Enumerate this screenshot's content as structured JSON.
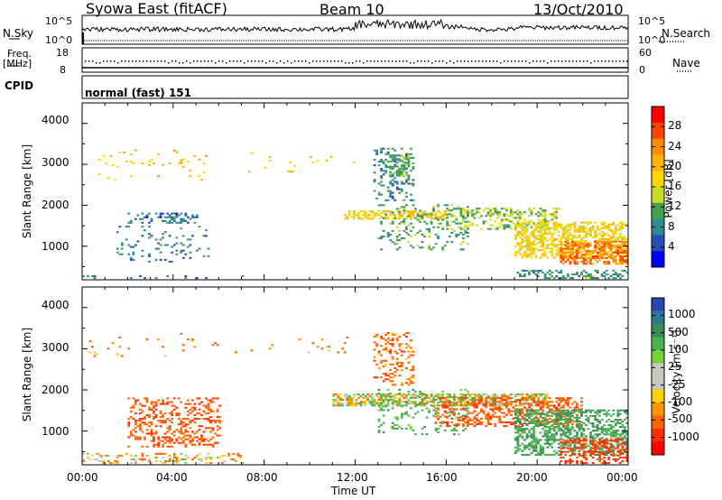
{
  "header": {
    "station": "Syowa East (fitACF)",
    "beam": "Beam 10",
    "date": "13/Oct/2010"
  },
  "top_panels": {
    "nsky_label": "N.Sky",
    "nsearch_label": "N.Search",
    "nsky_ticks": [
      "10^5",
      "10^0"
    ],
    "nsearch_ticks": [
      "10^5",
      "10^0"
    ],
    "freq_label": "Freq.",
    "freq_unit": "[MHz]",
    "freq_ticks": [
      "18",
      "8"
    ],
    "nave_label": "Nave",
    "nave_ticks": [
      "60",
      "0"
    ],
    "cpid_label": "CPID",
    "cpid_text": "normal (fast) 151"
  },
  "panels": {
    "ylabel": "Slant Range [km]",
    "yticks": [
      "4000",
      "3000",
      "2000",
      "1000"
    ],
    "xlabel": "Time UT",
    "xticks": [
      "00:00",
      "04:00",
      "08:00",
      "12:00",
      "16:00",
      "20:00",
      "00:00"
    ]
  },
  "power_colorbar": {
    "label": "Power [dB]",
    "ticks": [
      "28",
      "24",
      "20",
      "16",
      "12",
      "8",
      "4"
    ],
    "colors": [
      "#ff0000",
      "#ff4400",
      "#ff8c00",
      "#ffb300",
      "#ffd700",
      "#c8dc28",
      "#46a050",
      "#2d8c8c",
      "#2850b4",
      "#0000ff"
    ]
  },
  "velocity_colorbar": {
    "label": "Velocity [m s⁻¹]",
    "ticks": [
      "1000",
      "500",
      "100",
      "25",
      "-25",
      "-100",
      "-500",
      "-1000"
    ],
    "colors": [
      "#2845b4",
      "#2d7896",
      "#3c8c5a",
      "#4bb450",
      "#78d23c",
      "#c8c8c0",
      "#c8c8c0",
      "#ffd200",
      "#ff9600",
      "#ff6400",
      "#ff3000",
      "#ff0000"
    ]
  },
  "chart_data": [
    {
      "type": "heatmap",
      "title": "Power",
      "xlabel": "Time UT",
      "ylabel": "Slant Range [km]",
      "xlim": [
        0,
        24
      ],
      "ylim": [
        180,
        4500
      ],
      "colorbar": "Power [dB]",
      "clim": [
        0,
        30
      ],
      "regions": [
        {
          "t": [
            0,
            0.6
          ],
          "r": [
            200,
            250
          ],
          "v": 6,
          "d": 0.5
        },
        {
          "t": [
            0.5,
            7.0
          ],
          "r": [
            200,
            280
          ],
          "v": 6,
          "d": 0.1
        },
        {
          "t": [
            0.3,
            6.0
          ],
          "r": [
            3000,
            3350
          ],
          "v": 18,
          "d": 0.05
        },
        {
          "t": [
            0.3,
            6.0
          ],
          "r": [
            2600,
            3100
          ],
          "v": 19,
          "d": 0.025
        },
        {
          "t": [
            2.0,
            5.0
          ],
          "r": [
            1550,
            1800
          ],
          "v": 5,
          "d": 0.35
        },
        {
          "t": [
            1.5,
            5.5
          ],
          "r": [
            600,
            1500
          ],
          "v": 6,
          "d": 0.1
        },
        {
          "t": [
            6.5,
            12.0
          ],
          "r": [
            2800,
            3300
          ],
          "v": 18,
          "d": 0.02
        },
        {
          "t": [
            11.5,
            16.0
          ],
          "r": [
            1650,
            1850
          ],
          "v": 17,
          "d": 0.6
        },
        {
          "t": [
            12.8,
            14.5
          ],
          "r": [
            2100,
            3400
          ],
          "v": 7,
          "d": 0.22
        },
        {
          "t": [
            13.5,
            14.3
          ],
          "r": [
            2700,
            3200
          ],
          "v": 10,
          "d": 0.55
        },
        {
          "t": [
            13.0,
            17.0
          ],
          "r": [
            900,
            2000
          ],
          "v": 9,
          "d": 0.15
        },
        {
          "t": [
            16.0,
            21.0
          ],
          "r": [
            1400,
            1900
          ],
          "v": 12,
          "d": 0.35
        },
        {
          "t": [
            19.0,
            24.0
          ],
          "r": [
            700,
            1600
          ],
          "v": 17,
          "d": 0.55
        },
        {
          "t": [
            21.0,
            24.0
          ],
          "r": [
            550,
            1100
          ],
          "v": 24,
          "d": 0.55
        },
        {
          "t": [
            19.0,
            24.0
          ],
          "r": [
            200,
            400
          ],
          "v": 8,
          "d": 0.35
        }
      ]
    },
    {
      "type": "heatmap",
      "title": "Velocity",
      "xlabel": "Time UT",
      "ylabel": "Slant Range [km]",
      "xlim": [
        0,
        24
      ],
      "ylim": [
        180,
        4500
      ],
      "colorbar": "Velocity [m s⁻¹]",
      "clim": [
        -1000,
        1000
      ],
      "regions": [
        {
          "t": [
            0,
            7.0
          ],
          "r": [
            200,
            450
          ],
          "v": -60,
          "d": 0.25
        },
        {
          "t": [
            0.3,
            6.0
          ],
          "r": [
            2800,
            3350
          ],
          "v": -150,
          "d": 0.04
        },
        {
          "t": [
            2.0,
            6.0
          ],
          "r": [
            600,
            1800
          ],
          "v": -250,
          "d": 0.3
        },
        {
          "t": [
            6.5,
            12.0
          ],
          "r": [
            2800,
            3300
          ],
          "v": -120,
          "d": 0.02
        },
        {
          "t": [
            11.0,
            20.5
          ],
          "r": [
            1600,
            1900
          ],
          "v": 0,
          "d": 0.65
        },
        {
          "t": [
            12.8,
            14.5
          ],
          "r": [
            2100,
            3400
          ],
          "v": -200,
          "d": 0.22
        },
        {
          "t": [
            13.0,
            17.0
          ],
          "r": [
            900,
            2000
          ],
          "v": 200,
          "d": 0.15
        },
        {
          "t": [
            15.5,
            22.0
          ],
          "r": [
            1100,
            1800
          ],
          "v": -250,
          "d": 0.35
        },
        {
          "t": [
            19.0,
            24.0
          ],
          "r": [
            400,
            1500
          ],
          "v": 300,
          "d": 0.5
        },
        {
          "t": [
            21.0,
            24.0
          ],
          "r": [
            200,
            800
          ],
          "v": -400,
          "d": 0.4
        }
      ]
    }
  ]
}
